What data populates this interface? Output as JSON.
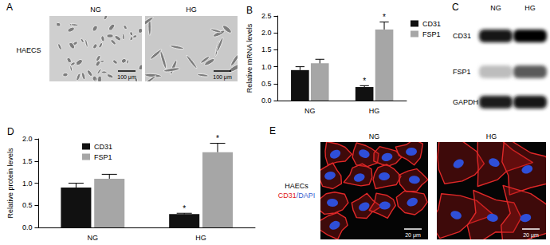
{
  "chart_data": [
    {
      "type": "bar",
      "title": "B",
      "categories": [
        "NG",
        "HG"
      ],
      "y_label": "Relative mRNA levels",
      "ylim": [
        0,
        2.5
      ],
      "yticks": [
        {
          "value": 0,
          "label": "0.0"
        },
        0.5,
        {
          "value": 1,
          "label": "1.0"
        },
        1.5,
        {
          "value": 2,
          "label": "2.0"
        },
        2.5
      ],
      "legend": "upper right",
      "series": [
        {
          "name": "CD31",
          "color": "#111111",
          "values": [
            0.9,
            0.4
          ],
          "errors": [
            0.1,
            0.04
          ],
          "significance": [
            null,
            "*"
          ]
        },
        {
          "name": "FSP1",
          "color": "#a6a6a6",
          "values": [
            1.1,
            2.1
          ],
          "errors": [
            0.12,
            0.22
          ],
          "significance": [
            null,
            "*"
          ]
        }
      ]
    },
    {
      "type": "bar",
      "title": "D",
      "categories": [
        "NG",
        "HG"
      ],
      "y_label": "Relative protein levels",
      "ylim": [
        0,
        2
      ],
      "yticks": [
        {
          "value": 0,
          "label": "0.0"
        },
        0.5,
        {
          "value": 1,
          "label": "1.0"
        },
        1.5,
        {
          "value": 2,
          "label": "2.0"
        }
      ],
      "legend": "upper left",
      "series": [
        {
          "name": "CD31",
          "color": "#111111",
          "values": [
            0.9,
            0.3
          ],
          "errors": [
            0.1,
            0.02
          ],
          "significance": [
            null,
            "*"
          ]
        },
        {
          "name": "FSP1",
          "color": "#a6a6a6",
          "values": [
            1.1,
            1.7
          ],
          "errors": [
            0.1,
            0.2
          ],
          "significance": [
            null,
            "*"
          ]
        }
      ]
    }
  ],
  "panels": {
    "A": {
      "label": "A",
      "columns": [
        "NG",
        "HG"
      ],
      "row_label": "HAECS",
      "scale_bar": "100 μm"
    },
    "C": {
      "label": "C",
      "columns": [
        "NG",
        "HG"
      ],
      "rows": [
        "CD31",
        "FSP1",
        "GAPDH"
      ]
    },
    "E": {
      "label": "E",
      "columns": [
        "NG",
        "HG"
      ],
      "row_label": "HAECs",
      "stain": [
        {
          "text": "CD31",
          "color": "#e02020"
        },
        {
          "text": "/DAPI",
          "color": "#3a5fd0"
        }
      ],
      "scale_bar": "20 μm"
    }
  }
}
